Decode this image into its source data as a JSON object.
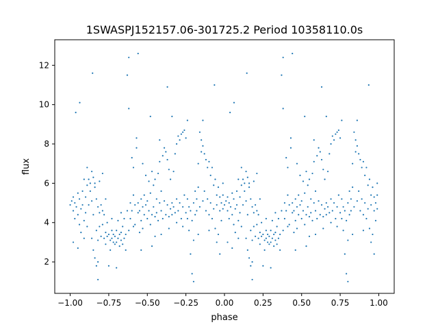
{
  "chart_data": {
    "type": "scatter",
    "title": "1SWASPJ152157.06-301725.2 Period 10358110.0s",
    "xlabel": "phase",
    "ylabel": "flux",
    "xlim": [
      -1.1,
      1.1
    ],
    "ylim": [
      0.4,
      13.3
    ],
    "xticks": [
      -1.0,
      -0.75,
      -0.5,
      -0.25,
      0.0,
      0.25,
      0.5,
      0.75,
      1.0
    ],
    "xtick_labels": [
      "−1.00",
      "−0.75",
      "−0.50",
      "−0.25",
      "0.00",
      "0.25",
      "0.50",
      "0.75",
      "1.00"
    ],
    "yticks": [
      2,
      4,
      6,
      8,
      10,
      12
    ],
    "ytick_labels": [
      "2",
      "4",
      "6",
      "8",
      "10",
      "12"
    ],
    "grid": false,
    "marker_color": "#1f77b4",
    "series": [
      {
        "repeat_period": 1.0,
        "points": [
          [
            0.0,
            4.9
          ],
          [
            0.01,
            5.1
          ],
          [
            0.02,
            4.6
          ],
          [
            0.02,
            5.3
          ],
          [
            0.03,
            4.2
          ],
          [
            0.03,
            5.0
          ],
          [
            0.04,
            4.8
          ],
          [
            0.05,
            5.5
          ],
          [
            0.05,
            4.4
          ],
          [
            0.06,
            3.9
          ],
          [
            0.06,
            5.2
          ],
          [
            0.07,
            4.7
          ],
          [
            0.07,
            3.5
          ],
          [
            0.08,
            4.9
          ],
          [
            0.08,
            5.6
          ],
          [
            0.09,
            4.1
          ],
          [
            0.09,
            3.2
          ],
          [
            0.1,
            5.3
          ],
          [
            0.1,
            4.5
          ],
          [
            0.11,
            5.9
          ],
          [
            0.11,
            3.8
          ],
          [
            0.12,
            6.2
          ],
          [
            0.12,
            4.9
          ],
          [
            0.13,
            5.6
          ],
          [
            0.13,
            6.0
          ],
          [
            0.14,
            3.2
          ],
          [
            0.14,
            5.1
          ],
          [
            0.15,
            2.6
          ],
          [
            0.15,
            6.3
          ],
          [
            0.15,
            4.4
          ],
          [
            0.16,
            2.2
          ],
          [
            0.16,
            5.8
          ],
          [
            0.17,
            1.8
          ],
          [
            0.17,
            3.6
          ],
          [
            0.17,
            5.2
          ],
          [
            0.18,
            2.0
          ],
          [
            0.18,
            4.8
          ],
          [
            0.18,
            3.1
          ],
          [
            0.19,
            4.5
          ],
          [
            0.19,
            3.8
          ],
          [
            0.2,
            4.9
          ],
          [
            0.2,
            3.3
          ],
          [
            0.21,
            4.6
          ],
          [
            0.21,
            3.9
          ],
          [
            0.22,
            3.2
          ],
          [
            0.22,
            4.4
          ],
          [
            0.23,
            3.5
          ],
          [
            0.23,
            2.9
          ],
          [
            0.24,
            3.3
          ],
          [
            0.24,
            4.0
          ],
          [
            0.25,
            3.4
          ],
          [
            0.26,
            3.1
          ],
          [
            0.26,
            2.6
          ],
          [
            0.27,
            3.6
          ],
          [
            0.27,
            3.2
          ],
          [
            0.28,
            3.0
          ],
          [
            0.28,
            3.4
          ],
          [
            0.29,
            2.9
          ],
          [
            0.29,
            3.3
          ],
          [
            0.3,
            3.6
          ],
          [
            0.3,
            3.0
          ],
          [
            0.31,
            3.2
          ],
          [
            0.31,
            4.1
          ],
          [
            0.32,
            3.4
          ],
          [
            0.32,
            2.8
          ],
          [
            0.33,
            3.1
          ],
          [
            0.33,
            3.5
          ],
          [
            0.34,
            2.9
          ],
          [
            0.34,
            3.8
          ],
          [
            0.35,
            3.2
          ],
          [
            0.35,
            4.2
          ],
          [
            0.36,
            2.6
          ],
          [
            0.36,
            3.4
          ],
          [
            0.37,
            11.5
          ],
          [
            0.37,
            4.6
          ],
          [
            0.38,
            9.8
          ],
          [
            0.38,
            3.6
          ],
          [
            0.38,
            12.4
          ],
          [
            0.39,
            5.0
          ],
          [
            0.39,
            4.2
          ],
          [
            0.4,
            7.3
          ],
          [
            0.4,
            4.6
          ],
          [
            0.41,
            6.8
          ],
          [
            0.41,
            5.4
          ],
          [
            0.42,
            4.9
          ],
          [
            0.42,
            3.9
          ],
          [
            0.43,
            8.3
          ],
          [
            0.43,
            7.8
          ],
          [
            0.44,
            5.0
          ],
          [
            0.44,
            4.5
          ],
          [
            0.45,
            4.6
          ],
          [
            0.45,
            3.5
          ],
          [
            0.46,
            5.2
          ],
          [
            0.46,
            4.1
          ],
          [
            0.47,
            4.8
          ],
          [
            0.47,
            3.7
          ],
          [
            0.48,
            5.4
          ],
          [
            0.48,
            4.4
          ],
          [
            0.49,
            4.9
          ],
          [
            0.49,
            6.4
          ],
          [
            0.5,
            4.2
          ],
          [
            0.5,
            5.1
          ],
          [
            0.51,
            4.6
          ],
          [
            0.51,
            6.1
          ],
          [
            0.52,
            3.9
          ],
          [
            0.52,
            5.5
          ],
          [
            0.53,
            4.4
          ],
          [
            0.53,
            6.6
          ],
          [
            0.54,
            4.8
          ],
          [
            0.54,
            5.9
          ],
          [
            0.55,
            4.3
          ],
          [
            0.55,
            6.2
          ],
          [
            0.56,
            5.2
          ],
          [
            0.56,
            4.5
          ],
          [
            0.57,
            6.5
          ],
          [
            0.57,
            4.1
          ],
          [
            0.58,
            5.0
          ],
          [
            0.58,
            7.1
          ],
          [
            0.59,
            4.6
          ],
          [
            0.59,
            5.6
          ],
          [
            0.6,
            7.4
          ],
          [
            0.6,
            4.2
          ],
          [
            0.61,
            7.8
          ],
          [
            0.61,
            5.1
          ],
          [
            0.62,
            4.4
          ],
          [
            0.62,
            7.6
          ],
          [
            0.63,
            7.2
          ],
          [
            0.63,
            4.9
          ],
          [
            0.64,
            6.7
          ],
          [
            0.64,
            4.3
          ],
          [
            0.65,
            6.2
          ],
          [
            0.65,
            4.7
          ],
          [
            0.66,
            5.0
          ],
          [
            0.66,
            4.4
          ],
          [
            0.67,
            4.8
          ],
          [
            0.67,
            6.6
          ],
          [
            0.68,
            7.5
          ],
          [
            0.68,
            4.5
          ],
          [
            0.69,
            8.0
          ],
          [
            0.69,
            5.2
          ],
          [
            0.7,
            8.4
          ],
          [
            0.7,
            4.6
          ],
          [
            0.71,
            8.2
          ],
          [
            0.71,
            5.0
          ],
          [
            0.72,
            8.5
          ],
          [
            0.72,
            4.2
          ],
          [
            0.73,
            8.6
          ],
          [
            0.73,
            4.8
          ],
          [
            0.74,
            8.7
          ],
          [
            0.74,
            5.4
          ],
          [
            0.75,
            8.3
          ],
          [
            0.75,
            4.5
          ],
          [
            0.76,
            4.2
          ],
          [
            0.76,
            5.2
          ],
          [
            0.77,
            3.6
          ],
          [
            0.77,
            4.8
          ],
          [
            0.78,
            2.4
          ],
          [
            0.78,
            4.6
          ],
          [
            0.79,
            1.4
          ],
          [
            0.79,
            4.1
          ],
          [
            0.8,
            5.0
          ],
          [
            0.8,
            3.1
          ],
          [
            0.81,
            4.4
          ],
          [
            0.81,
            5.6
          ],
          [
            0.82,
            5.2
          ],
          [
            0.82,
            4.6
          ],
          [
            0.83,
            7.0
          ],
          [
            0.83,
            5.8
          ],
          [
            0.84,
            8.6
          ],
          [
            0.84,
            4.8
          ],
          [
            0.85,
            8.2
          ],
          [
            0.85,
            7.6
          ],
          [
            0.86,
            7.9
          ],
          [
            0.86,
            5.1
          ],
          [
            0.87,
            7.5
          ],
          [
            0.87,
            5.6
          ],
          [
            0.88,
            7.2
          ],
          [
            0.88,
            4.6
          ],
          [
            0.89,
            6.8
          ],
          [
            0.89,
            5.2
          ],
          [
            0.9,
            7.1
          ],
          [
            0.9,
            4.4
          ],
          [
            0.91,
            6.4
          ],
          [
            0.91,
            5.0
          ],
          [
            0.92,
            6.8
          ],
          [
            0.92,
            4.2
          ],
          [
            0.93,
            5.9
          ],
          [
            0.93,
            4.7
          ],
          [
            0.94,
            6.2
          ],
          [
            0.94,
            3.7
          ],
          [
            0.95,
            5.4
          ],
          [
            0.95,
            4.9
          ],
          [
            0.96,
            5.8
          ],
          [
            0.96,
            3.4
          ],
          [
            0.97,
            4.6
          ],
          [
            0.97,
            5.3
          ],
          [
            0.98,
            5.0
          ],
          [
            0.98,
            4.1
          ],
          [
            0.99,
            4.7
          ],
          [
            0.99,
            5.4
          ],
          [
            0.036,
            9.6
          ],
          [
            0.062,
            10.1
          ],
          [
            0.145,
            11.6
          ],
          [
            0.18,
            1.1
          ],
          [
            0.21,
            6.5
          ],
          [
            0.25,
            1.8
          ],
          [
            0.3,
            1.7
          ],
          [
            0.44,
            12.6
          ],
          [
            0.47,
            7.0
          ],
          [
            0.52,
            9.4
          ],
          [
            0.55,
            3.3
          ],
          [
            0.58,
            8.2
          ],
          [
            0.63,
            10.9
          ],
          [
            0.66,
            9.4
          ],
          [
            0.76,
            9.2
          ],
          [
            0.8,
            1.0
          ],
          [
            0.86,
            9.2
          ],
          [
            0.9,
            3.6
          ],
          [
            0.935,
            11.0
          ],
          [
            0.95,
            3.0
          ],
          [
            0.27,
            4.2
          ],
          [
            0.33,
            4.5
          ],
          [
            0.41,
            3.8
          ],
          [
            0.46,
            2.6
          ],
          [
            0.53,
            2.8
          ],
          [
            0.59,
            3.4
          ],
          [
            0.64,
            3.7
          ],
          [
            0.69,
            4.0
          ],
          [
            0.73,
            3.8
          ],
          [
            0.83,
            3.4
          ],
          [
            0.02,
            3.0
          ],
          [
            0.05,
            2.7
          ],
          [
            0.09,
            6.2
          ],
          [
            0.11,
            6.8
          ],
          [
            0.14,
            6.6
          ],
          [
            0.16,
            6.0
          ],
          [
            0.19,
            6.1
          ],
          [
            0.23,
            5.2
          ],
          [
            0.97,
            2.4
          ],
          [
            0.99,
            6.0
          ]
        ]
      }
    ]
  }
}
